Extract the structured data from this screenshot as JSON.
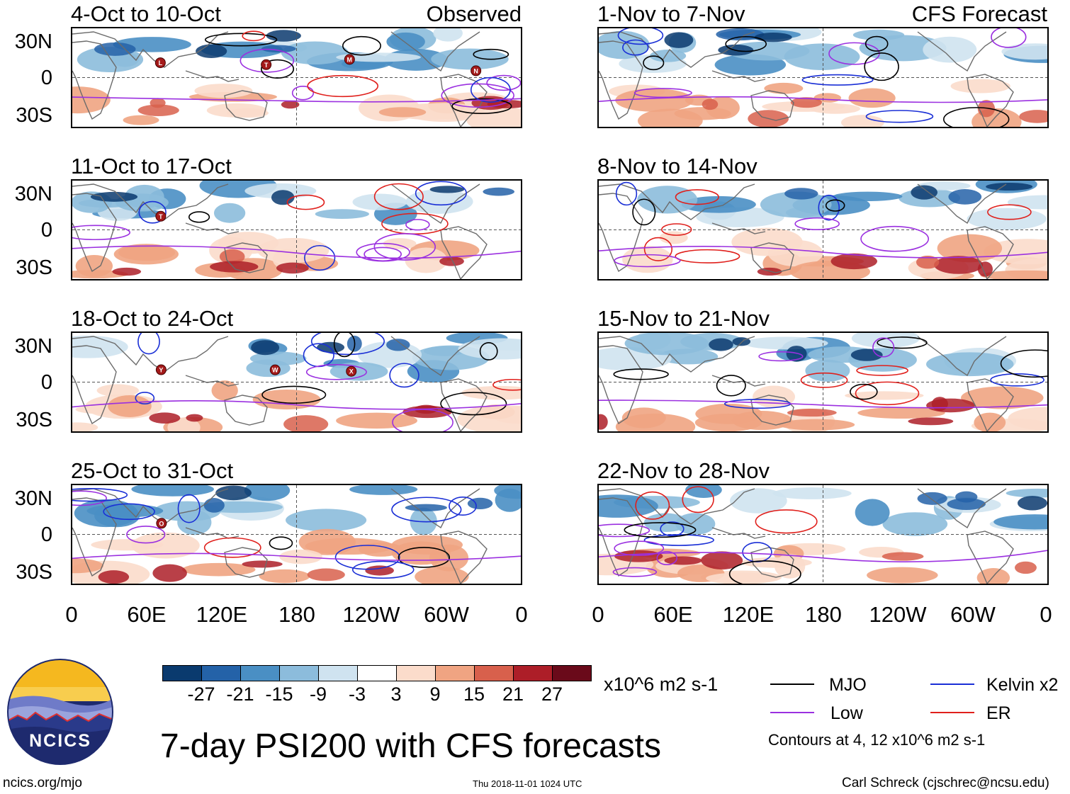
{
  "title": "7-day PSI200 with CFS forecasts",
  "left_column_label": "Observed",
  "right_column_label": "CFS Forecast",
  "panels_left": [
    {
      "period": "4-Oct to 10-Oct",
      "storm_markers": [
        "L",
        "T",
        "M",
        "N"
      ]
    },
    {
      "period": "11-Oct to 17-Oct",
      "storm_markers": [
        "T"
      ]
    },
    {
      "period": "18-Oct to 24-Oct",
      "storm_markers": [
        "Y",
        "W",
        "X"
      ]
    },
    {
      "period": "25-Oct to 31-Oct",
      "storm_markers": [
        "O"
      ]
    }
  ],
  "panels_right": [
    {
      "period": "1-Nov to 7-Nov"
    },
    {
      "period": "8-Nov to 14-Nov"
    },
    {
      "period": "15-Nov to 21-Nov"
    },
    {
      "period": "22-Nov to 28-Nov"
    }
  ],
  "lat_labels": [
    "30N",
    "0",
    "30S"
  ],
  "lon_labels": [
    "0",
    "60E",
    "120E",
    "180",
    "120W",
    "60W",
    "0"
  ],
  "colorbar": {
    "unit": "x10^6 m2 s-1",
    "ticks": [
      "-27",
      "-21",
      "-15",
      "-9",
      "-3",
      "3",
      "9",
      "15",
      "21",
      "27"
    ],
    "colors": [
      "#0a3a6e",
      "#2462a8",
      "#4a8fc4",
      "#8cbcdc",
      "#cfe3f0",
      "#ffffff",
      "#fbdccb",
      "#f0a482",
      "#d8604c",
      "#ad1e28",
      "#6a0a1a"
    ]
  },
  "legend": {
    "items": [
      {
        "label": "MJO",
        "color": "#000000"
      },
      {
        "label": "Kelvin x2",
        "color": "#1a2fd6"
      },
      {
        "label": "Low",
        "color": "#9b30e0"
      },
      {
        "label": "ER",
        "color": "#e0201c"
      }
    ],
    "note": "Contours at 4, 12 x10^6 m2 s-1"
  },
  "logo_text": "NCICS",
  "footer": {
    "url": "ncics.org/mjo",
    "timestamp": "Thu 2018-11-01 1024 UTC",
    "author": "Carl Schreck (cjschrec@ncsu.edu)"
  }
}
